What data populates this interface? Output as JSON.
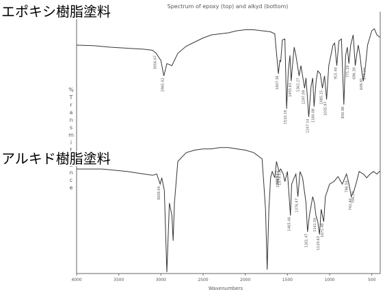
{
  "labels": {
    "top": "エポキシ樹脂塗料",
    "bottom": "アルキド樹脂塗料"
  },
  "chart_data": {
    "type": "line",
    "title": "Spectrum of epoxy (top) and alkyd (bottom)",
    "xlabel": "Wavenumbers",
    "ylabel": "% Transmittance",
    "xlim": [
      4000,
      400
    ],
    "x_reversed": true,
    "xticks": [
      4000,
      3500,
      3000,
      2500,
      2000,
      1500,
      1000,
      500
    ],
    "series": [
      {
        "name": "エポキシ樹脂塗料",
        "points": [
          [
            4000,
            20
          ],
          [
            3800,
            20.5
          ],
          [
            3600,
            22
          ],
          [
            3400,
            23
          ],
          [
            3200,
            24
          ],
          [
            3100,
            25
          ],
          [
            3056,
            28
          ],
          [
            3000,
            35
          ],
          [
            2965,
            50
          ],
          [
            2930,
            38
          ],
          [
            2870,
            40
          ],
          [
            2800,
            28
          ],
          [
            2700,
            21
          ],
          [
            2600,
            17
          ],
          [
            2500,
            13
          ],
          [
            2400,
            10
          ],
          [
            2300,
            9
          ],
          [
            2200,
            8
          ],
          [
            2100,
            6
          ],
          [
            2000,
            5
          ],
          [
            1900,
            5
          ],
          [
            1800,
            6
          ],
          [
            1700,
            7
          ],
          [
            1650,
            9
          ],
          [
            1607,
            48
          ],
          [
            1590,
            35
          ],
          [
            1580,
            36
          ],
          [
            1560,
            15
          ],
          [
            1530,
            14
          ],
          [
            1510,
            82
          ],
          [
            1490,
            45
          ],
          [
            1470,
            30
          ],
          [
            1456,
            55
          ],
          [
            1440,
            40
          ],
          [
            1420,
            22
          ],
          [
            1400,
            30
          ],
          [
            1384,
            38
          ],
          [
            1362,
            50
          ],
          [
            1340,
            40
          ],
          [
            1297,
            62
          ],
          [
            1280,
            52
          ],
          [
            1247,
            90
          ],
          [
            1220,
            60
          ],
          [
            1200,
            52
          ],
          [
            1184,
            80
          ],
          [
            1160,
            55
          ],
          [
            1140,
            45
          ],
          [
            1110,
            48
          ],
          [
            1085,
            62
          ],
          [
            1060,
            50
          ],
          [
            1036,
            73
          ],
          [
            1010,
            40
          ],
          [
            960,
            20
          ],
          [
            940,
            18
          ],
          [
            915,
            40
          ],
          [
            890,
            16
          ],
          [
            860,
            14
          ],
          [
            831,
            78
          ],
          [
            810,
            30
          ],
          [
            790,
            22
          ],
          [
            771,
            38
          ],
          [
            750,
            20
          ],
          [
            720,
            10
          ],
          [
            696,
            40
          ],
          [
            680,
            30
          ],
          [
            660,
            20
          ],
          [
            640,
            30
          ],
          [
            620,
            45
          ],
          [
            600,
            55
          ],
          [
            574,
            40
          ],
          [
            550,
            20
          ],
          [
            500,
            6
          ],
          [
            470,
            4
          ],
          [
            440,
            10
          ],
          [
            410,
            12
          ],
          [
            400,
            12
          ]
        ],
        "peak_labels": [
          3056.67,
          2965.42,
          1607.36,
          1510.19,
          1455.61,
          1362.27,
          1297.09,
          1247.14,
          1184.08,
          1085.15,
          1035.97,
          915.44,
          830.98,
          771.19,
          696.3,
          609.91,
          574.1
        ]
      },
      {
        "name": "アルキド樹脂塗料",
        "points": [
          [
            4000,
            18
          ],
          [
            3700,
            18
          ],
          [
            3400,
            20
          ],
          [
            3200,
            22
          ],
          [
            3100,
            23
          ],
          [
            3050,
            22
          ],
          [
            3009,
            30
          ],
          [
            2990,
            25
          ],
          [
            2960,
            35
          ],
          [
            2930,
            100
          ],
          [
            2900,
            45
          ],
          [
            2870,
            55
          ],
          [
            2855,
            75
          ],
          [
            2840,
            45
          ],
          [
            2800,
            12
          ],
          [
            2700,
            5
          ],
          [
            2600,
            3
          ],
          [
            2500,
            2
          ],
          [
            2400,
            2
          ],
          [
            2300,
            1
          ],
          [
            2200,
            1
          ],
          [
            2100,
            2
          ],
          [
            2000,
            3
          ],
          [
            1900,
            5
          ],
          [
            1800,
            10
          ],
          [
            1760,
            50
          ],
          [
            1740,
            98
          ],
          [
            1720,
            50
          ],
          [
            1700,
            25
          ],
          [
            1680,
            20
          ],
          [
            1650,
            25
          ],
          [
            1630,
            12
          ],
          [
            1600,
            20
          ],
          [
            1580,
            18
          ],
          [
            1550,
            22
          ],
          [
            1530,
            28
          ],
          [
            1500,
            20
          ],
          [
            1465,
            55
          ],
          [
            1450,
            30
          ],
          [
            1420,
            25
          ],
          [
            1400,
            22
          ],
          [
            1376,
            40
          ],
          [
            1350,
            20
          ],
          [
            1320,
            25
          ],
          [
            1280,
            45
          ],
          [
            1262,
            68
          ],
          [
            1240,
            55
          ],
          [
            1200,
            40
          ],
          [
            1180,
            45
          ],
          [
            1162,
            55
          ],
          [
            1140,
            60
          ],
          [
            1120,
            70
          ],
          [
            1100,
            50
          ],
          [
            1070,
            60
          ],
          [
            1050,
            40
          ],
          [
            1000,
            30
          ],
          [
            950,
            28
          ],
          [
            900,
            24
          ],
          [
            850,
            30
          ],
          [
            800,
            22
          ],
          [
            770,
            30
          ],
          [
            744,
            40
          ],
          [
            710,
            35
          ],
          [
            680,
            28
          ],
          [
            650,
            20
          ],
          [
            600,
            22
          ],
          [
            560,
            25
          ],
          [
            520,
            22
          ],
          [
            480,
            20
          ],
          [
            440,
            22
          ],
          [
            410,
            20
          ],
          [
            400,
            20
          ]
        ],
        "peak_labels": [
          3009.04,
          1609.1,
          1579.51,
          1599.41,
          1465.46,
          1376.47,
          1261.47,
          1161.5,
          1120.63,
          1071.49,
          786.54,
          742.4,
          706.23
        ]
      }
    ]
  }
}
